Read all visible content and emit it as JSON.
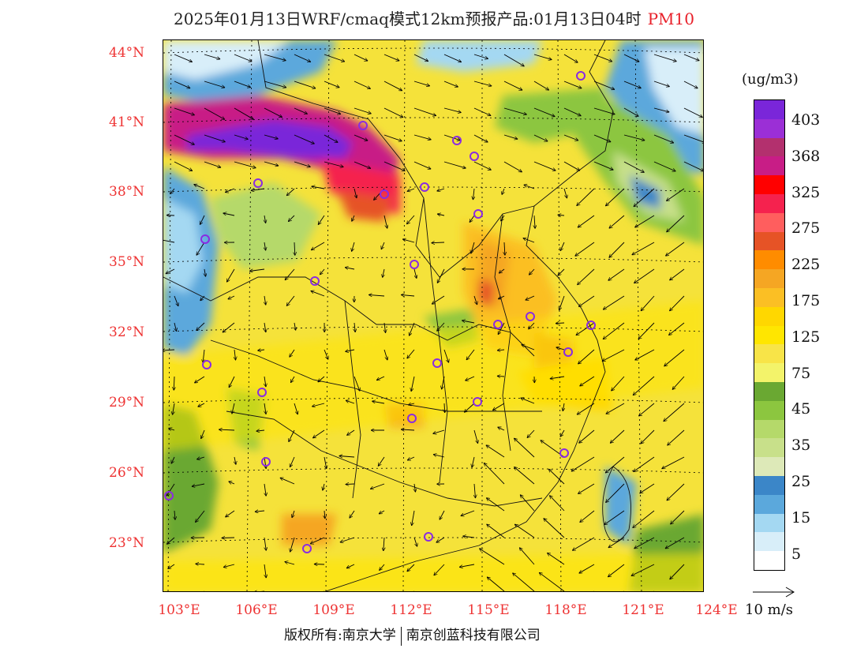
{
  "title": {
    "main": "2025年01月13日WRF/cmaq模式12km预报产品:01月13日04时",
    "pollutant": "PM10"
  },
  "map": {
    "lat_labels": [
      "44°N",
      "41°N",
      "38°N",
      "35°N",
      "32°N",
      "29°N",
      "26°N",
      "23°N"
    ],
    "lon_labels": [
      "103°E",
      "106°E",
      "109°E",
      "112°E",
      "115°E",
      "118°E",
      "121°E",
      "124°E"
    ],
    "lat_values": [
      44,
      41,
      38,
      35,
      32,
      29,
      26,
      23
    ],
    "lon_values": [
      103,
      106,
      109,
      112,
      115,
      118,
      121,
      124
    ],
    "extent": {
      "lon_min": 102.7,
      "lon_max": 124.0,
      "lat_min": 21.1,
      "lat_max": 44.6
    },
    "station_marker_color": "#8a2be2"
  },
  "legend": {
    "unit": "(ug/m3)",
    "labels": [
      "403",
      "368",
      "325",
      "275",
      "225",
      "175",
      "125",
      "75",
      "45",
      "35",
      "25",
      "15",
      "5"
    ],
    "colors": [
      "#7a26d9",
      "#9b2fd6",
      "#b3306e",
      "#c81d86",
      "#ff0000",
      "#f5224e",
      "#ff5e5e",
      "#e65326",
      "#ff8c00",
      "#f5a623",
      "#fbbf24",
      "#ffd700",
      "#ffe600",
      "#f8e448",
      "#f3f36a",
      "#6aa832",
      "#8cc63f",
      "#b5d96a",
      "#c8e08a",
      "#dde9b8",
      "#3b86c8",
      "#5ba8dc",
      "#a4d8f2",
      "#d8eef9",
      "#ffffff"
    ]
  },
  "wind_reference": {
    "label": "10 m/s"
  },
  "footer": {
    "left": "版权所有:南京大学",
    "right": "南京创蓝科技有限公司"
  }
}
